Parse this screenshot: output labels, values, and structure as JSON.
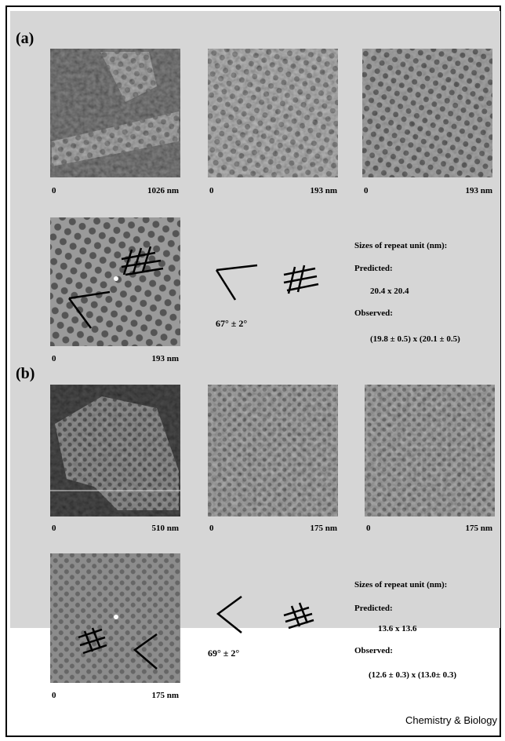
{
  "panels": [
    {
      "label": "(a)",
      "images": [
        {
          "scale_start": "0",
          "scale_end": "1026 nm"
        },
        {
          "scale_start": "0",
          "scale_end": "193 nm"
        },
        {
          "scale_start": "0",
          "scale_end": "193 nm"
        },
        {
          "scale_start": "0",
          "scale_end": "193 nm"
        }
      ],
      "angle": "67° ± 2°",
      "sizes": {
        "heading": "Sizes of repeat unit (nm):",
        "predicted_label": "Predicted:",
        "predicted": "20.4 x 20.4",
        "observed_label": "Observed:",
        "observed": "(19.8 ± 0.5) x (20.1 ± 0.5)"
      }
    },
    {
      "label": "(b)",
      "images": [
        {
          "scale_start": "0",
          "scale_end": "510 nm"
        },
        {
          "scale_start": "0",
          "scale_end": "175 nm"
        },
        {
          "scale_start": "0",
          "scale_end": "175 nm"
        },
        {
          "scale_start": "0",
          "scale_end": "175 nm"
        }
      ],
      "angle": "69° ± 2°",
      "sizes": {
        "heading": "Sizes of repeat unit (nm):",
        "predicted_label": "Predicted:",
        "predicted": "13.6 x 13.6",
        "observed_label": "Observed:",
        "observed": "(12.6 ± 0.3) x (13.0± 0.3)"
      }
    }
  ],
  "credit": "Chemistry & Biology"
}
